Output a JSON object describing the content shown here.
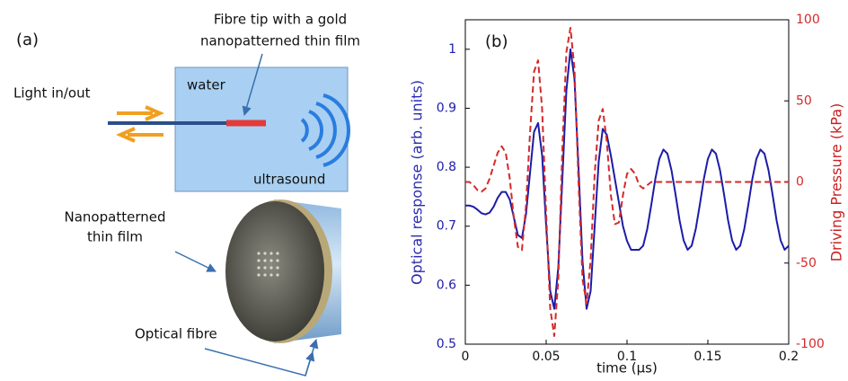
{
  "diagram": {
    "panel_label": "(a)",
    "tip_label": [
      "Fibre tip with a gold",
      "nanopatterned thin film"
    ],
    "light_label": "Light in/out",
    "water_label": "water",
    "ultrasound_label": "ultrasound",
    "film_label": [
      "Nanopatterned",
      "thin film"
    ],
    "fibre_label": "Optical fibre"
  },
  "chart_data": {
    "type": "line",
    "annotations": [
      "(b)"
    ],
    "x_label": "time (μs)",
    "y_label": "Optical response (arb. units)",
    "y2_label": "Driving Pressure (kPa)",
    "xlim": [
      0,
      0.2
    ],
    "xticks": [
      0,
      0.05,
      0.1,
      0.15,
      0.2
    ],
    "ylim": [
      0.5,
      1.05
    ],
    "yticks": [
      0.5,
      0.6,
      0.7,
      0.8,
      0.9,
      1
    ],
    "y2lim": [
      -100,
      100
    ],
    "y2ticks": [
      -100,
      -50,
      0,
      50,
      100
    ],
    "x": [
      0,
      0.0025,
      0.005,
      0.0075,
      0.01,
      0.0125,
      0.015,
      0.0175,
      0.02,
      0.0225,
      0.025,
      0.0275,
      0.03,
      0.0325,
      0.035,
      0.0375,
      0.04,
      0.0425,
      0.045,
      0.0475,
      0.05,
      0.0525,
      0.055,
      0.0575,
      0.06,
      0.0625,
      0.065,
      0.0675,
      0.07,
      0.0725,
      0.075,
      0.0775,
      0.08,
      0.0825,
      0.085,
      0.0875,
      0.09,
      0.0925,
      0.095,
      0.0975,
      0.1,
      0.1025,
      0.105,
      0.1075,
      0.11,
      0.1125,
      0.115,
      0.1175,
      0.12,
      0.1225,
      0.125,
      0.1275,
      0.13,
      0.1325,
      0.135,
      0.1375,
      0.14,
      0.1425,
      0.145,
      0.1475,
      0.15,
      0.1525,
      0.155,
      0.1575,
      0.16,
      0.1625,
      0.165,
      0.1675,
      0.17,
      0.1725,
      0.175,
      0.1775,
      0.18,
      0.1825,
      0.185,
      0.1875,
      0.19,
      0.1925,
      0.195,
      0.1975,
      0.2
    ],
    "series": [
      {
        "color": "#1c1ca8",
        "dash": false,
        "axis": "y",
        "values": [
          0.735,
          0.735,
          0.733,
          0.728,
          0.722,
          0.72,
          0.723,
          0.733,
          0.748,
          0.758,
          0.758,
          0.745,
          0.715,
          0.685,
          0.68,
          0.72,
          0.79,
          0.86,
          0.875,
          0.82,
          0.7,
          0.59,
          0.56,
          0.63,
          0.78,
          0.93,
          1.0,
          0.95,
          0.8,
          0.64,
          0.56,
          0.59,
          0.7,
          0.81,
          0.865,
          0.855,
          0.82,
          0.78,
          0.74,
          0.7,
          0.675,
          0.66,
          0.66,
          0.66,
          0.667,
          0.695,
          0.736,
          0.78,
          0.814,
          0.83,
          0.823,
          0.795,
          0.754,
          0.71,
          0.676,
          0.66,
          0.667,
          0.695,
          0.736,
          0.78,
          0.814,
          0.83,
          0.823,
          0.795,
          0.754,
          0.71,
          0.676,
          0.66,
          0.667,
          0.695,
          0.736,
          0.78,
          0.814,
          0.83,
          0.823,
          0.795,
          0.754,
          0.71,
          0.676,
          0.66,
          0.667
        ]
      },
      {
        "color": "#d42a2a",
        "dash": true,
        "axis": "y2",
        "values": [
          0,
          0,
          -2,
          -5,
          -6,
          -4,
          2,
          10,
          18,
          22,
          18,
          2,
          -22,
          -40,
          -42,
          -15,
          30,
          68,
          75,
          45,
          -20,
          -78,
          -95,
          -60,
          20,
          80,
          95,
          70,
          0,
          -60,
          -75,
          -48,
          5,
          38,
          45,
          25,
          -8,
          -26,
          -25,
          -8,
          5,
          8,
          5,
          -2,
          -4,
          -2,
          0,
          0,
          0,
          0,
          0,
          0,
          0,
          0,
          0,
          0,
          0,
          0,
          0,
          0,
          0,
          0,
          0,
          0,
          0,
          0,
          0,
          0,
          0,
          0,
          0,
          0,
          0,
          0,
          0,
          0,
          0,
          0,
          0,
          0,
          0
        ]
      }
    ]
  }
}
